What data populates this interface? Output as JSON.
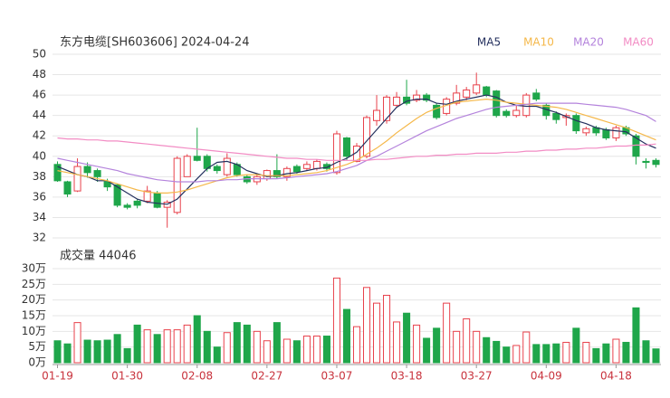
{
  "chart_data": [
    {
      "type": "candlestick",
      "title": "东方电缆[SH603606] 2024-04-24",
      "ylim": [
        32,
        50
      ],
      "yticks": [
        32,
        34,
        36,
        38,
        40,
        42,
        44,
        46,
        48,
        50
      ],
      "grid": true,
      "up_color": "#e8414b",
      "down_color": "#1fa64a",
      "open": [
        39.2,
        37.5,
        36.6,
        39.0,
        38.6,
        37.5,
        37.2,
        35.2,
        35.6,
        35.6,
        36.4,
        35.0,
        34.5,
        38.0,
        40.0,
        40.0,
        39.0,
        38.2,
        39.2,
        38.0,
        37.5,
        37.8,
        38.6,
        38.0,
        39.0,
        38.8,
        38.8,
        39.2,
        38.4,
        41.8,
        39.5,
        40.0,
        43.5,
        43.5,
        45.0,
        45.8,
        45.5,
        46.0,
        45.0,
        44.2,
        45.2,
        45.8,
        46.2,
        46.8,
        46.4,
        44.4,
        44.0,
        44.0,
        46.2,
        45.0,
        44.2,
        43.8,
        44.0,
        42.3,
        42.8,
        42.6,
        41.8,
        42.8,
        42.0,
        39.5,
        39.6
      ],
      "high": [
        39.5,
        37.6,
        39.8,
        39.4,
        38.8,
        37.8,
        37.3,
        35.4,
        35.8,
        37.1,
        36.6,
        35.7,
        40.0,
        40.2,
        42.8,
        40.2,
        39.2,
        40.3,
        39.4,
        38.2,
        38.2,
        38.7,
        40.2,
        39.0,
        39.2,
        39.5,
        39.7,
        39.4,
        42.5,
        41.9,
        41.3,
        44.0,
        46.0,
        46.0,
        46.3,
        47.5,
        46.5,
        46.2,
        45.2,
        45.8,
        47.0,
        46.8,
        48.2,
        46.9,
        46.5,
        44.6,
        45.0,
        46.2,
        46.6,
        45.2,
        44.4,
        44.2,
        44.2,
        42.9,
        43.0,
        42.8,
        43.0,
        43.0,
        42.2,
        39.8,
        39.8
      ],
      "low": [
        37.5,
        36.0,
        36.5,
        37.9,
        37.5,
        36.6,
        35.0,
        34.8,
        34.9,
        35.4,
        34.9,
        33.0,
        34.3,
        38.0,
        39.5,
        38.5,
        38.3,
        38.0,
        38.0,
        37.3,
        37.2,
        37.6,
        37.8,
        37.6,
        38.3,
        38.6,
        38.6,
        38.5,
        38.2,
        39.6,
        39.4,
        39.8,
        43.0,
        43.2,
        44.8,
        45.0,
        45.3,
        45.3,
        43.6,
        44.0,
        45.0,
        45.5,
        46.0,
        45.8,
        43.8,
        43.8,
        43.8,
        43.8,
        45.4,
        43.6,
        43.2,
        43.0,
        42.2,
        42.0,
        42.0,
        41.6,
        41.5,
        42.0,
        39.2,
        38.8,
        38.9
      ],
      "close": [
        37.6,
        36.3,
        39.0,
        38.4,
        38.0,
        37.0,
        35.2,
        35.0,
        35.2,
        36.6,
        35.0,
        35.5,
        39.8,
        40.0,
        39.6,
        38.8,
        38.6,
        39.8,
        38.2,
        37.5,
        38.0,
        38.6,
        38.0,
        38.8,
        38.5,
        39.2,
        39.5,
        38.8,
        42.2,
        40.0,
        41.0,
        43.8,
        44.5,
        45.8,
        45.8,
        45.2,
        46.0,
        45.5,
        43.8,
        45.6,
        46.2,
        46.5,
        47.0,
        46.0,
        44.0,
        44.0,
        44.5,
        46.0,
        45.6,
        44.0,
        43.6,
        44.0,
        42.5,
        42.7,
        42.3,
        41.8,
        42.8,
        42.2,
        40.0,
        39.4,
        39.2
      ],
      "series": [
        {
          "name": "MA5",
          "color": "#24305e",
          "values": [
            39.0,
            38.6,
            38.2,
            38.0,
            37.6,
            37.6,
            37.0,
            36.4,
            35.8,
            35.5,
            35.4,
            35.3,
            35.8,
            36.8,
            37.8,
            38.8,
            39.4,
            39.5,
            39.2,
            38.6,
            38.3,
            38.0,
            38.1,
            38.3,
            38.4,
            38.6,
            38.8,
            38.9,
            39.4,
            39.8,
            40.4,
            41.5,
            42.6,
            43.7,
            44.8,
            45.4,
            45.6,
            45.6,
            45.2,
            45.1,
            45.4,
            45.6,
            45.8,
            46.0,
            45.8,
            45.3,
            45.0,
            44.9,
            44.9,
            44.6,
            44.3,
            43.9,
            43.5,
            43.2,
            42.8,
            42.6,
            42.5,
            42.4,
            41.8,
            41.2,
            40.8
          ]
        },
        {
          "name": "MA10",
          "color": "#f5b84a",
          "values": [
            38.6,
            38.4,
            38.2,
            38.0,
            37.8,
            37.6,
            37.3,
            37.0,
            36.7,
            36.5,
            36.4,
            36.4,
            36.5,
            36.7,
            37.0,
            37.3,
            37.6,
            37.9,
            38.1,
            38.2,
            38.2,
            38.1,
            38.1,
            38.1,
            38.2,
            38.3,
            38.4,
            38.6,
            38.9,
            39.2,
            39.6,
            40.2,
            40.8,
            41.5,
            42.3,
            43.0,
            43.7,
            44.3,
            44.7,
            45.0,
            45.3,
            45.4,
            45.5,
            45.6,
            45.5,
            45.3,
            45.2,
            45.1,
            45.0,
            44.9,
            44.8,
            44.6,
            44.3,
            44.0,
            43.7,
            43.4,
            43.1,
            42.8,
            42.4,
            42.0,
            41.6
          ]
        },
        {
          "name": "MA20",
          "color": "#b483dc",
          "values": [
            39.8,
            39.6,
            39.4,
            39.2,
            39.0,
            38.8,
            38.6,
            38.3,
            38.1,
            37.9,
            37.7,
            37.6,
            37.5,
            37.5,
            37.5,
            37.6,
            37.6,
            37.7,
            37.7,
            37.8,
            37.8,
            37.8,
            37.8,
            37.9,
            38.0,
            38.1,
            38.2,
            38.3,
            38.5,
            38.8,
            39.1,
            39.6,
            40.0,
            40.5,
            41.0,
            41.5,
            42.0,
            42.5,
            42.9,
            43.3,
            43.7,
            44.0,
            44.3,
            44.6,
            44.8,
            44.9,
            45.0,
            45.1,
            45.2,
            45.2,
            45.2,
            45.2,
            45.2,
            45.1,
            45.0,
            44.9,
            44.8,
            44.6,
            44.3,
            44.0,
            43.4
          ]
        },
        {
          "name": "MA60",
          "color": "#f28cc4",
          "values": [
            41.8,
            41.7,
            41.7,
            41.6,
            41.6,
            41.5,
            41.5,
            41.4,
            41.3,
            41.2,
            41.1,
            41.0,
            40.9,
            40.8,
            40.7,
            40.6,
            40.5,
            40.4,
            40.3,
            40.2,
            40.1,
            40.0,
            39.9,
            39.8,
            39.8,
            39.7,
            39.7,
            39.6,
            39.6,
            39.6,
            39.6,
            39.6,
            39.7,
            39.7,
            39.8,
            39.9,
            40.0,
            40.0,
            40.1,
            40.1,
            40.2,
            40.2,
            40.3,
            40.3,
            40.3,
            40.4,
            40.4,
            40.5,
            40.5,
            40.6,
            40.6,
            40.7,
            40.7,
            40.8,
            40.8,
            40.9,
            41.0,
            41.0,
            41.1,
            41.1,
            41.2
          ]
        }
      ]
    },
    {
      "type": "bar",
      "title": "成交量 44046",
      "categories": [
        "01-19",
        null,
        null,
        null,
        null,
        null,
        null,
        "01-30",
        null,
        null,
        null,
        null,
        null,
        null,
        "02-08",
        null,
        null,
        null,
        null,
        null,
        null,
        "02-27",
        null,
        null,
        null,
        null,
        null,
        null,
        "03-07",
        null,
        null,
        null,
        null,
        null,
        null,
        "03-18",
        null,
        null,
        null,
        null,
        null,
        null,
        "03-27",
        null,
        null,
        null,
        null,
        null,
        null,
        "04-09",
        null,
        null,
        null,
        null,
        null,
        null,
        "04-18",
        null,
        null,
        null,
        null
      ],
      "values": [
        7,
        6,
        12.8,
        7.2,
        7,
        7.2,
        9,
        4.5,
        12,
        10.5,
        9,
        10.5,
        10.5,
        12,
        15,
        10,
        5,
        9.6,
        12.8,
        12,
        10,
        7,
        12.8,
        7.5,
        7,
        8.5,
        8.5,
        8.5,
        27,
        17,
        11.5,
        24,
        19,
        21.5,
        13,
        15.8,
        12,
        7.8,
        11,
        19,
        10,
        14,
        10,
        8,
        6.8,
        5,
        5.5,
        9.8,
        5.8,
        5.8,
        6,
        6.5,
        11,
        6.5,
        4.5,
        6,
        7.5,
        6.5,
        17.5,
        7,
        4.4046
      ],
      "ylim": [
        0,
        30
      ],
      "yticks": [
        {
          "value": 0,
          "label": "0万"
        },
        {
          "value": 5,
          "label": "5万"
        },
        {
          "value": 10,
          "label": "10万"
        },
        {
          "value": 15,
          "label": "15万"
        },
        {
          "value": 20,
          "label": "20万"
        },
        {
          "value": 25,
          "label": "25万"
        },
        {
          "value": 30,
          "label": "30万"
        }
      ],
      "grid": true
    }
  ]
}
